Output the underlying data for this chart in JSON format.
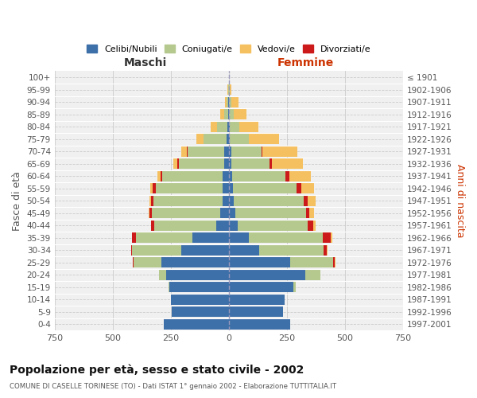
{
  "age_groups": [
    "0-4",
    "5-9",
    "10-14",
    "15-19",
    "20-24",
    "25-29",
    "30-34",
    "35-39",
    "40-44",
    "45-49",
    "50-54",
    "55-59",
    "60-64",
    "65-69",
    "70-74",
    "75-79",
    "80-84",
    "85-89",
    "90-94",
    "95-99",
    "100+"
  ],
  "birth_years": [
    "1997-2001",
    "1992-1996",
    "1987-1991",
    "1982-1986",
    "1977-1981",
    "1972-1976",
    "1967-1971",
    "1962-1966",
    "1957-1961",
    "1952-1956",
    "1947-1951",
    "1942-1946",
    "1937-1941",
    "1932-1936",
    "1927-1931",
    "1922-1926",
    "1917-1921",
    "1912-1916",
    "1907-1911",
    "1902-1906",
    "≤ 1901"
  ],
  "male": {
    "celibi": [
      280,
      245,
      250,
      255,
      270,
      290,
      205,
      155,
      55,
      35,
      28,
      25,
      25,
      20,
      18,
      8,
      5,
      2,
      1,
      0,
      0
    ],
    "coniugati": [
      0,
      0,
      0,
      5,
      30,
      120,
      210,
      245,
      265,
      295,
      295,
      290,
      260,
      195,
      160,
      100,
      45,
      18,
      8,
      2,
      0
    ],
    "vedovi": [
      0,
      0,
      0,
      0,
      0,
      0,
      0,
      0,
      2,
      3,
      5,
      10,
      12,
      20,
      25,
      30,
      25,
      15,
      8,
      3,
      0
    ],
    "divorziati": [
      0,
      0,
      0,
      0,
      0,
      3,
      5,
      17,
      13,
      13,
      12,
      12,
      10,
      5,
      3,
      2,
      1,
      0,
      0,
      0,
      0
    ]
  },
  "female": {
    "nubili": [
      265,
      235,
      240,
      280,
      330,
      265,
      130,
      85,
      40,
      28,
      22,
      18,
      15,
      12,
      10,
      5,
      5,
      2,
      1,
      0,
      0
    ],
    "coniugate": [
      0,
      0,
      0,
      10,
      65,
      185,
      280,
      320,
      300,
      305,
      300,
      275,
      230,
      165,
      130,
      80,
      40,
      18,
      10,
      4,
      0
    ],
    "vedove": [
      0,
      0,
      0,
      0,
      0,
      5,
      5,
      5,
      8,
      18,
      35,
      55,
      95,
      135,
      150,
      130,
      80,
      55,
      30,
      8,
      1
    ],
    "divorziate": [
      0,
      0,
      0,
      0,
      0,
      5,
      12,
      35,
      25,
      15,
      18,
      20,
      15,
      8,
      4,
      3,
      2,
      1,
      0,
      0,
      0
    ]
  },
  "colors": {
    "celibi_nubili": "#3d6fa8",
    "coniugati": "#b5c98e",
    "vedovi": "#f5c060",
    "divorziati": "#cc1a1a"
  },
  "xlim": 750,
  "title": "Popolazione per età, sesso e stato civile - 2002",
  "subtitle": "COMUNE DI CASELLE TORINESE (TO) - Dati ISTAT 1° gennaio 2002 - Elaborazione TUTTITALIA.IT",
  "xlabel_left": "Maschi",
  "xlabel_right": "Femmine",
  "ylabel_left": "Fasce di età",
  "ylabel_right": "Anni di nascita",
  "legend_labels": [
    "Celibi/Nubili",
    "Coniugati/e",
    "Vedovi/e",
    "Divorziati/e"
  ],
  "background_color": "#ffffff",
  "grid_color": "#cccccc",
  "xtick_vals": [
    -750,
    -500,
    -250,
    0,
    250,
    500,
    750
  ]
}
